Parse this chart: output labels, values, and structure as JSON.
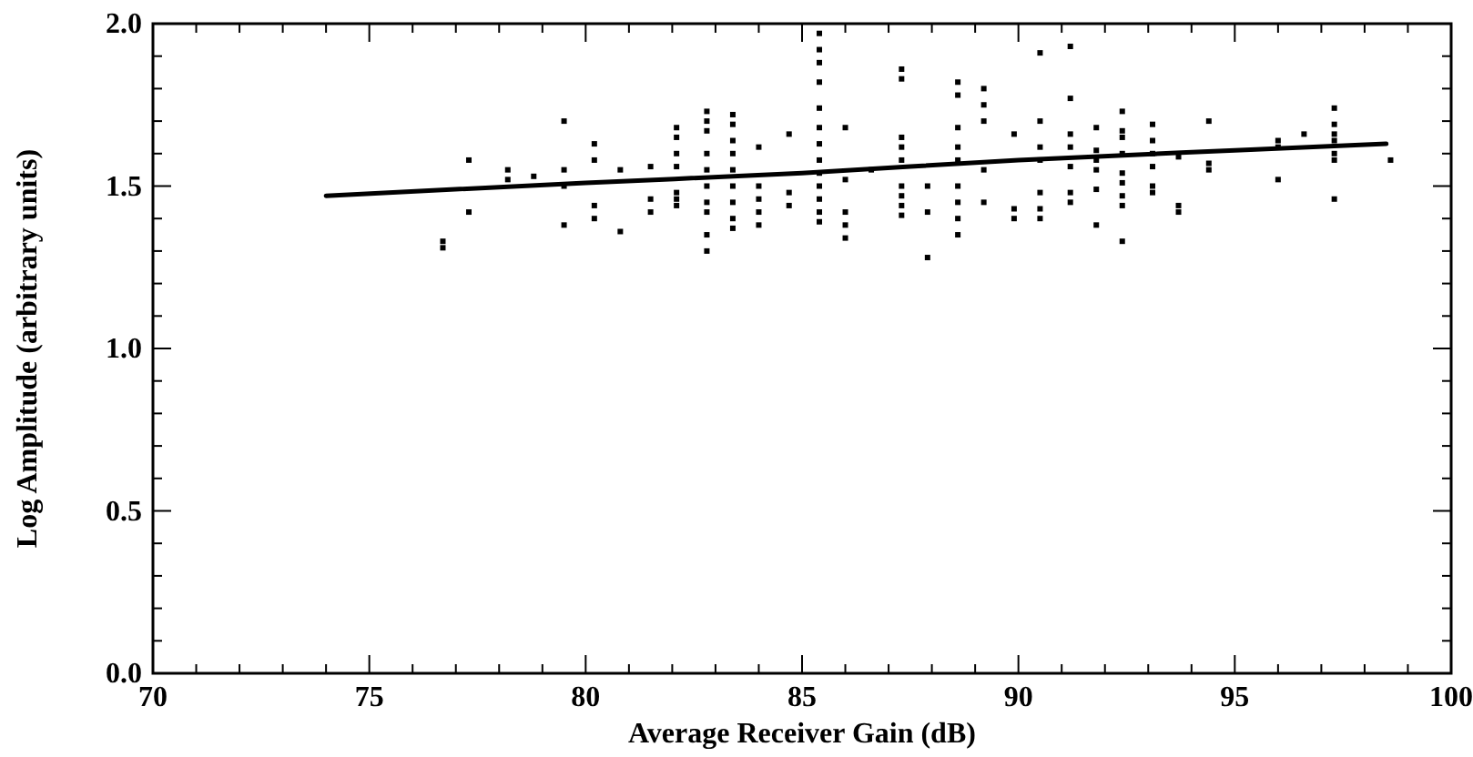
{
  "chart_data": {
    "type": "scatter",
    "xlabel": "Average Receiver Gain (dB)",
    "ylabel": "Log Amplitude (arbitrary units)",
    "xlim": [
      70,
      100
    ],
    "ylim": [
      0,
      2
    ],
    "xticks": [
      70,
      {
        "value": 71,
        "label": null
      },
      {
        "value": 72,
        "label": null
      },
      {
        "value": 73,
        "label": null
      },
      {
        "value": 74,
        "label": null
      },
      75,
      {
        "value": 76,
        "label": null
      },
      {
        "value": 77,
        "label": null
      },
      {
        "value": 78,
        "label": null
      },
      {
        "value": 79,
        "label": null
      },
      80,
      {
        "value": 81,
        "label": null
      },
      {
        "value": 82,
        "label": null
      },
      {
        "value": 83,
        "label": null
      },
      {
        "value": 84,
        "label": null
      },
      85,
      {
        "value": 86,
        "label": null
      },
      {
        "value": 87,
        "label": null
      },
      {
        "value": 88,
        "label": null
      },
      {
        "value": 89,
        "label": null
      },
      90,
      {
        "value": 91,
        "label": null
      },
      {
        "value": 92,
        "label": null
      },
      {
        "value": 93,
        "label": null
      },
      {
        "value": 94,
        "label": null
      },
      95,
      {
        "value": 96,
        "label": null
      },
      {
        "value": 97,
        "label": null
      },
      {
        "value": 98,
        "label": null
      },
      {
        "value": 99,
        "label": null
      },
      100
    ],
    "yticks": [
      {
        "value": 0,
        "label": "0.0"
      },
      {
        "value": 0.1,
        "label": null
      },
      {
        "value": 0.2,
        "label": null
      },
      {
        "value": 0.3,
        "label": null
      },
      {
        "value": 0.4,
        "label": null
      },
      {
        "value": 0.5,
        "label": "0.5"
      },
      {
        "value": 0.6,
        "label": null
      },
      {
        "value": 0.7,
        "label": null
      },
      {
        "value": 0.8,
        "label": null
      },
      {
        "value": 0.9,
        "label": null
      },
      {
        "value": 1,
        "label": "1.0"
      },
      {
        "value": 1.1,
        "label": null
      },
      {
        "value": 1.2,
        "label": null
      },
      {
        "value": 1.3,
        "label": null
      },
      {
        "value": 1.4,
        "label": null
      },
      {
        "value": 1.5,
        "label": "1.5"
      },
      {
        "value": 1.6,
        "label": null
      },
      {
        "value": 1.7,
        "label": null
      },
      {
        "value": 1.8,
        "label": null
      },
      {
        "value": 1.9,
        "label": null
      },
      {
        "value": 2,
        "label": "2.0"
      }
    ],
    "grid": false,
    "series": [
      {
        "color": "#000000",
        "marker": "square",
        "x": [
          76.7,
          76.7,
          77.3,
          77.3,
          78.2,
          78.2,
          78.8,
          79.5,
          79.5,
          79.5,
          79.5,
          80.2,
          80.2,
          80.2,
          80.2,
          80.8,
          80.8,
          81.5,
          81.5,
          81.5,
          82.1,
          82.1,
          82.1,
          82.1,
          82.1,
          82.1,
          82.1,
          82.8,
          82.8,
          82.8,
          82.8,
          82.8,
          82.8,
          82.8,
          82.8,
          82.8,
          82.8,
          83.4,
          83.4,
          83.4,
          83.4,
          83.4,
          83.4,
          83.4,
          83.4,
          83.4,
          84.0,
          84.0,
          84.0,
          84.0,
          84.0,
          84.7,
          84.7,
          84.7,
          85.4,
          85.4,
          85.4,
          85.4,
          85.4,
          85.4,
          85.4,
          85.4,
          85.4,
          85.4,
          85.4,
          85.4,
          85.4,
          86.0,
          86.0,
          86.0,
          86.0,
          86.0,
          86.6,
          87.3,
          87.3,
          87.3,
          87.3,
          87.3,
          87.3,
          87.3,
          87.3,
          87.3,
          87.9,
          87.9,
          87.9,
          88.6,
          88.6,
          88.6,
          88.6,
          88.6,
          88.6,
          88.6,
          88.6,
          88.6,
          89.2,
          89.2,
          89.2,
          89.2,
          89.2,
          89.9,
          89.9,
          89.9,
          90.5,
          90.5,
          90.5,
          90.5,
          90.5,
          90.5,
          90.5,
          91.2,
          91.2,
          91.2,
          91.2,
          91.2,
          91.2,
          91.2,
          91.8,
          91.8,
          91.8,
          91.8,
          91.8,
          91.8,
          92.4,
          92.4,
          92.4,
          92.4,
          92.4,
          92.4,
          92.4,
          92.4,
          92.4,
          93.1,
          93.1,
          93.1,
          93.1,
          93.1,
          93.1,
          93.7,
          93.7,
          93.7,
          94.4,
          94.4,
          94.4,
          96.0,
          96.0,
          96.0,
          96.6,
          97.3,
          97.3,
          97.3,
          97.3,
          97.3,
          97.3,
          97.3,
          98.6
        ],
        "values": [
          1.33,
          1.31,
          1.58,
          1.42,
          1.55,
          1.52,
          1.53,
          1.7,
          1.55,
          1.5,
          1.38,
          1.63,
          1.58,
          1.44,
          1.4,
          1.55,
          1.36,
          1.56,
          1.46,
          1.42,
          1.68,
          1.65,
          1.6,
          1.56,
          1.48,
          1.46,
          1.44,
          1.73,
          1.7,
          1.67,
          1.6,
          1.55,
          1.5,
          1.45,
          1.42,
          1.35,
          1.3,
          1.72,
          1.69,
          1.64,
          1.6,
          1.55,
          1.5,
          1.45,
          1.4,
          1.37,
          1.62,
          1.5,
          1.46,
          1.42,
          1.38,
          1.66,
          1.48,
          1.44,
          1.97,
          1.92,
          1.88,
          1.82,
          1.74,
          1.68,
          1.63,
          1.58,
          1.54,
          1.5,
          1.46,
          1.42,
          1.39,
          1.68,
          1.52,
          1.42,
          1.38,
          1.34,
          1.55,
          1.86,
          1.83,
          1.65,
          1.62,
          1.58,
          1.5,
          1.47,
          1.44,
          1.41,
          1.5,
          1.42,
          1.28,
          1.82,
          1.78,
          1.68,
          1.62,
          1.58,
          1.5,
          1.45,
          1.4,
          1.35,
          1.8,
          1.75,
          1.7,
          1.55,
          1.45,
          1.66,
          1.43,
          1.4,
          1.91,
          1.7,
          1.62,
          1.58,
          1.48,
          1.43,
          1.4,
          1.93,
          1.77,
          1.66,
          1.62,
          1.56,
          1.48,
          1.45,
          1.68,
          1.61,
          1.58,
          1.55,
          1.49,
          1.38,
          1.73,
          1.67,
          1.65,
          1.6,
          1.54,
          1.51,
          1.47,
          1.44,
          1.33,
          1.69,
          1.64,
          1.6,
          1.56,
          1.5,
          1.48,
          1.59,
          1.44,
          1.42,
          1.7,
          1.57,
          1.55,
          1.64,
          1.62,
          1.52,
          1.66,
          1.74,
          1.69,
          1.66,
          1.64,
          1.6,
          1.58,
          1.46,
          1.58
        ]
      },
      {
        "type": "line",
        "color": "#000000",
        "line_style": "solid",
        "x": [
          74,
          80,
          85,
          90,
          95,
          98.5
        ],
        "values": [
          1.47,
          1.51,
          1.54,
          1.58,
          1.61,
          1.63
        ]
      }
    ]
  }
}
